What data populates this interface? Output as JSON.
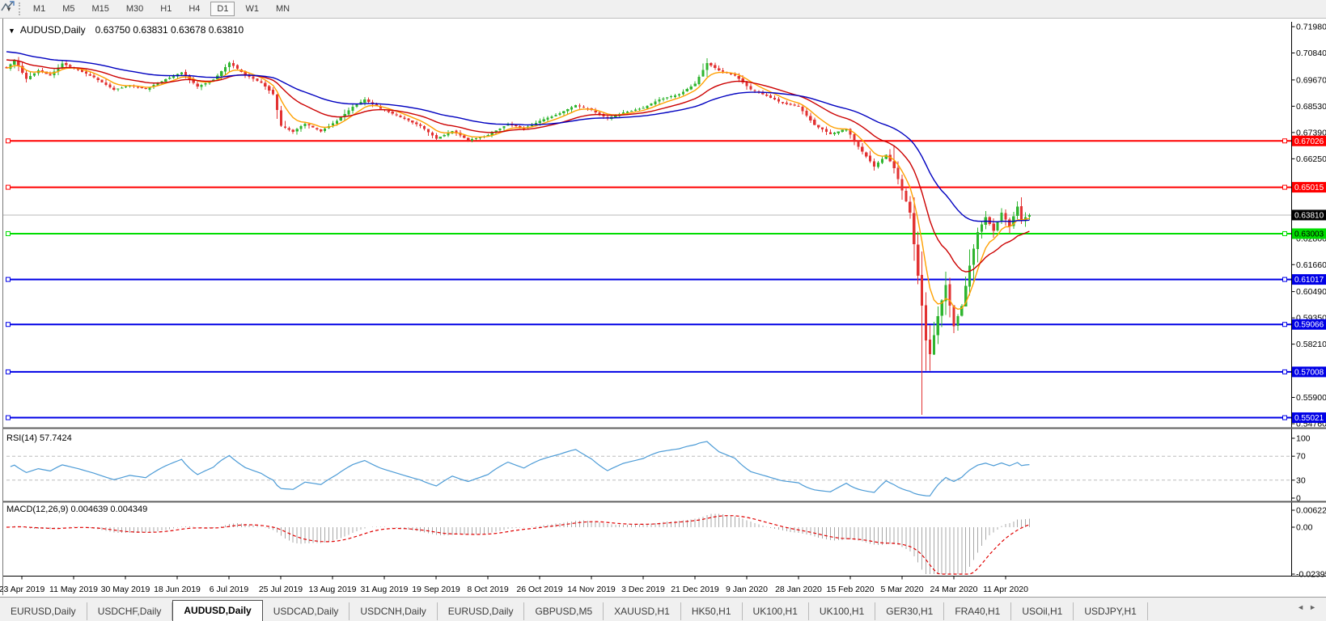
{
  "toolbar": {
    "timeframes": [
      "M1",
      "M5",
      "M15",
      "M30",
      "H1",
      "H4",
      "D1",
      "W1",
      "MN"
    ],
    "active_timeframe": "D1",
    "dropdown_glyph": "▼"
  },
  "chart": {
    "dropdown_glyph": "▼",
    "title": "AUDUSD,Daily",
    "ohlc_text": "0.63750 0.63831 0.63678 0.63810"
  },
  "chart_data": {
    "type": "candlestick",
    "symbol": "AUDUSD",
    "timeframe": "Daily",
    "open": "0.63750",
    "high": "0.63831",
    "low": "0.63678",
    "close": "0.63810",
    "bar_count": 258,
    "x_labels": [
      "23 Apr 2019",
      "11 May 2019",
      "30 May 2019",
      "18 Jun 2019",
      "6 Jul 2019",
      "25 Jul 2019",
      "13 Aug 2019",
      "31 Aug 2019",
      "19 Sep 2019",
      "8 Oct 2019",
      "26 Oct 2019",
      "14 Nov 2019",
      "3 Dec 2019",
      "21 Dec 2019",
      "9 Jan 2020",
      "28 Jan 2020",
      "15 Feb 2020",
      "5 Mar 2020",
      "24 Mar 2020",
      "11 Apr 2020"
    ],
    "y_ticks": [
      {
        "label": "0.71980",
        "value": 0.7198
      },
      {
        "label": "0.70840",
        "value": 0.7084
      },
      {
        "label": "0.69670",
        "value": 0.6967
      },
      {
        "label": "0.68530",
        "value": 0.6853
      },
      {
        "label": "0.67390",
        "value": 0.6739
      },
      {
        "label": "0.66250",
        "value": 0.6625
      },
      {
        "label": "0.62800",
        "value": 0.628
      },
      {
        "label": "0.61660",
        "value": 0.6166
      },
      {
        "label": "0.60490",
        "value": 0.6049
      },
      {
        "label": "0.59350",
        "value": 0.5935
      },
      {
        "label": "0.58210",
        "value": 0.5821
      },
      {
        "label": "0.55900",
        "value": 0.559
      },
      {
        "label": "0.54760",
        "value": 0.5476
      }
    ],
    "price_lines": [
      {
        "label": "0.67026",
        "value": 0.67026,
        "color": "#ff0000",
        "width": 2,
        "text_color": "#ffffff",
        "handles": true
      },
      {
        "label": "0.65015",
        "value": 0.65015,
        "color": "#ff0000",
        "width": 2,
        "text_color": "#ffffff",
        "handles": true
      },
      {
        "label": "0.63810",
        "value": 0.6381,
        "color": "#b8b8b8",
        "width": 1,
        "text_color": "#ffffff",
        "label_bg": "#000000",
        "handles": false,
        "role": "current-price"
      },
      {
        "label": "0.63003",
        "value": 0.63003,
        "color": "#00dd00",
        "width": 2,
        "text_color": "#000000",
        "handles": true
      },
      {
        "label": "0.61017",
        "value": 0.61017,
        "color": "#0000e6",
        "width": 2,
        "text_color": "#ffffff",
        "handles": true
      },
      {
        "label": "0.59066",
        "value": 0.59066,
        "color": "#0000e6",
        "width": 2,
        "text_color": "#ffffff",
        "handles": true
      },
      {
        "label": "0.57008",
        "value": 0.57008,
        "color": "#0000e6",
        "width": 2,
        "text_color": "#ffffff",
        "handles": true
      },
      {
        "label": "0.55021",
        "value": 0.55021,
        "color": "#0000e6",
        "width": 2,
        "text_color": "#ffffff",
        "handles": true
      }
    ],
    "candle_up_color": "#2fb52f",
    "candle_down_color": "#e23232",
    "close_anchors": [
      [
        0,
        0.7018
      ],
      [
        2,
        0.7052
      ],
      [
        5,
        0.6972
      ],
      [
        8,
        0.7008
      ],
      [
        11,
        0.6986
      ],
      [
        14,
        0.7038
      ],
      [
        18,
        0.701
      ],
      [
        22,
        0.6978
      ],
      [
        27,
        0.6925
      ],
      [
        31,
        0.6942
      ],
      [
        35,
        0.6928
      ],
      [
        39,
        0.6962
      ],
      [
        44,
        0.7
      ],
      [
        48,
        0.6938
      ],
      [
        52,
        0.6968
      ],
      [
        56,
        0.7042
      ],
      [
        60,
        0.6988
      ],
      [
        64,
        0.6955
      ],
      [
        67,
        0.6905
      ],
      [
        69,
        0.6768
      ],
      [
        72,
        0.6742
      ],
      [
        75,
        0.6778
      ],
      [
        79,
        0.6744
      ],
      [
        83,
        0.679
      ],
      [
        87,
        0.685
      ],
      [
        90,
        0.6882
      ],
      [
        94,
        0.6842
      ],
      [
        99,
        0.6806
      ],
      [
        104,
        0.6768
      ],
      [
        108,
        0.6712
      ],
      [
        112,
        0.6745
      ],
      [
        116,
        0.6706
      ],
      [
        121,
        0.6728
      ],
      [
        126,
        0.6776
      ],
      [
        130,
        0.6756
      ],
      [
        134,
        0.679
      ],
      [
        139,
        0.6822
      ],
      [
        143,
        0.6858
      ],
      [
        147,
        0.6836
      ],
      [
        151,
        0.68
      ],
      [
        155,
        0.6826
      ],
      [
        160,
        0.6846
      ],
      [
        164,
        0.6882
      ],
      [
        169,
        0.6905
      ],
      [
        173,
        0.695
      ],
      [
        176,
        0.704
      ],
      [
        179,
        0.7008
      ],
      [
        183,
        0.6986
      ],
      [
        187,
        0.6926
      ],
      [
        191,
        0.6898
      ],
      [
        195,
        0.6866
      ],
      [
        199,
        0.6852
      ],
      [
        203,
        0.6772
      ],
      [
        207,
        0.6732
      ],
      [
        211,
        0.6756
      ],
      [
        214,
        0.6678
      ],
      [
        218,
        0.6592
      ],
      [
        221,
        0.6642
      ],
      [
        223,
        0.6585
      ],
      [
        225,
        0.6488
      ],
      [
        227,
        0.6392
      ],
      [
        229,
        0.6118
      ],
      [
        230,
        0.5988
      ],
      [
        231,
        0.5838
      ],
      [
        232,
        0.5778
      ],
      [
        234,
        0.5942
      ],
      [
        236,
        0.6078
      ],
      [
        238,
        0.5898
      ],
      [
        240,
        0.5986
      ],
      [
        242,
        0.6162
      ],
      [
        244,
        0.6308
      ],
      [
        246,
        0.6372
      ],
      [
        248,
        0.6312
      ],
      [
        250,
        0.6392
      ],
      [
        252,
        0.6332
      ],
      [
        254,
        0.6418
      ],
      [
        255,
        0.6356
      ],
      [
        256,
        0.6372
      ],
      [
        257,
        0.6381
      ]
    ],
    "wick_overrides": [
      {
        "i": 223,
        "high": 0.6685
      },
      {
        "i": 230,
        "low": 0.5515
      },
      {
        "i": 231,
        "low": 0.5705
      }
    ],
    "noise_seed": 11,
    "moving_averages": [
      {
        "name": "fast",
        "period": 7,
        "color": "#ffa000",
        "init_offset": 0
      },
      {
        "name": "medium",
        "period": 20,
        "color": "#cc0000",
        "init_offset": 0.004
      },
      {
        "name": "slow",
        "period": 45,
        "color": "#0000c0",
        "init_offset": 0.0075
      }
    ],
    "rsi": {
      "label": "RSI(14) 57.7424",
      "period": 14,
      "value": "57.7424",
      "levels": [
        70,
        30
      ],
      "axis_labels": [
        "100",
        "70",
        "30",
        "0"
      ],
      "range": [
        0,
        100
      ],
      "color": "#4c9bd6"
    },
    "macd": {
      "label": "MACD(12,26,9) 0.004639 0.004349",
      "fast": 12,
      "slow": 26,
      "signal": 9,
      "macd_value": "0.004639",
      "signal_value": "0.004349",
      "axis_labels": [
        "0.00622",
        "0.00",
        "-0.02395"
      ],
      "axis_max": 0.00622,
      "axis_min": -0.02395,
      "hist_color": "#a8a8a8",
      "signal_color": "#e00000"
    }
  },
  "tabs": {
    "items": [
      "EURUSD,Daily",
      "USDCHF,Daily",
      "AUDUSD,Daily",
      "USDCAD,Daily",
      "USDCNH,Daily",
      "EURUSD,Daily",
      "GBPUSD,M5",
      "XAUUSD,H1",
      "HK50,H1",
      "UK100,H1",
      "UK100,H1",
      "GER30,H1",
      "FRA40,H1",
      "USOil,H1",
      "USDJPY,H1"
    ],
    "active_index": 2,
    "scroll_left_glyph": "◄",
    "scroll_right_glyph": "►"
  }
}
